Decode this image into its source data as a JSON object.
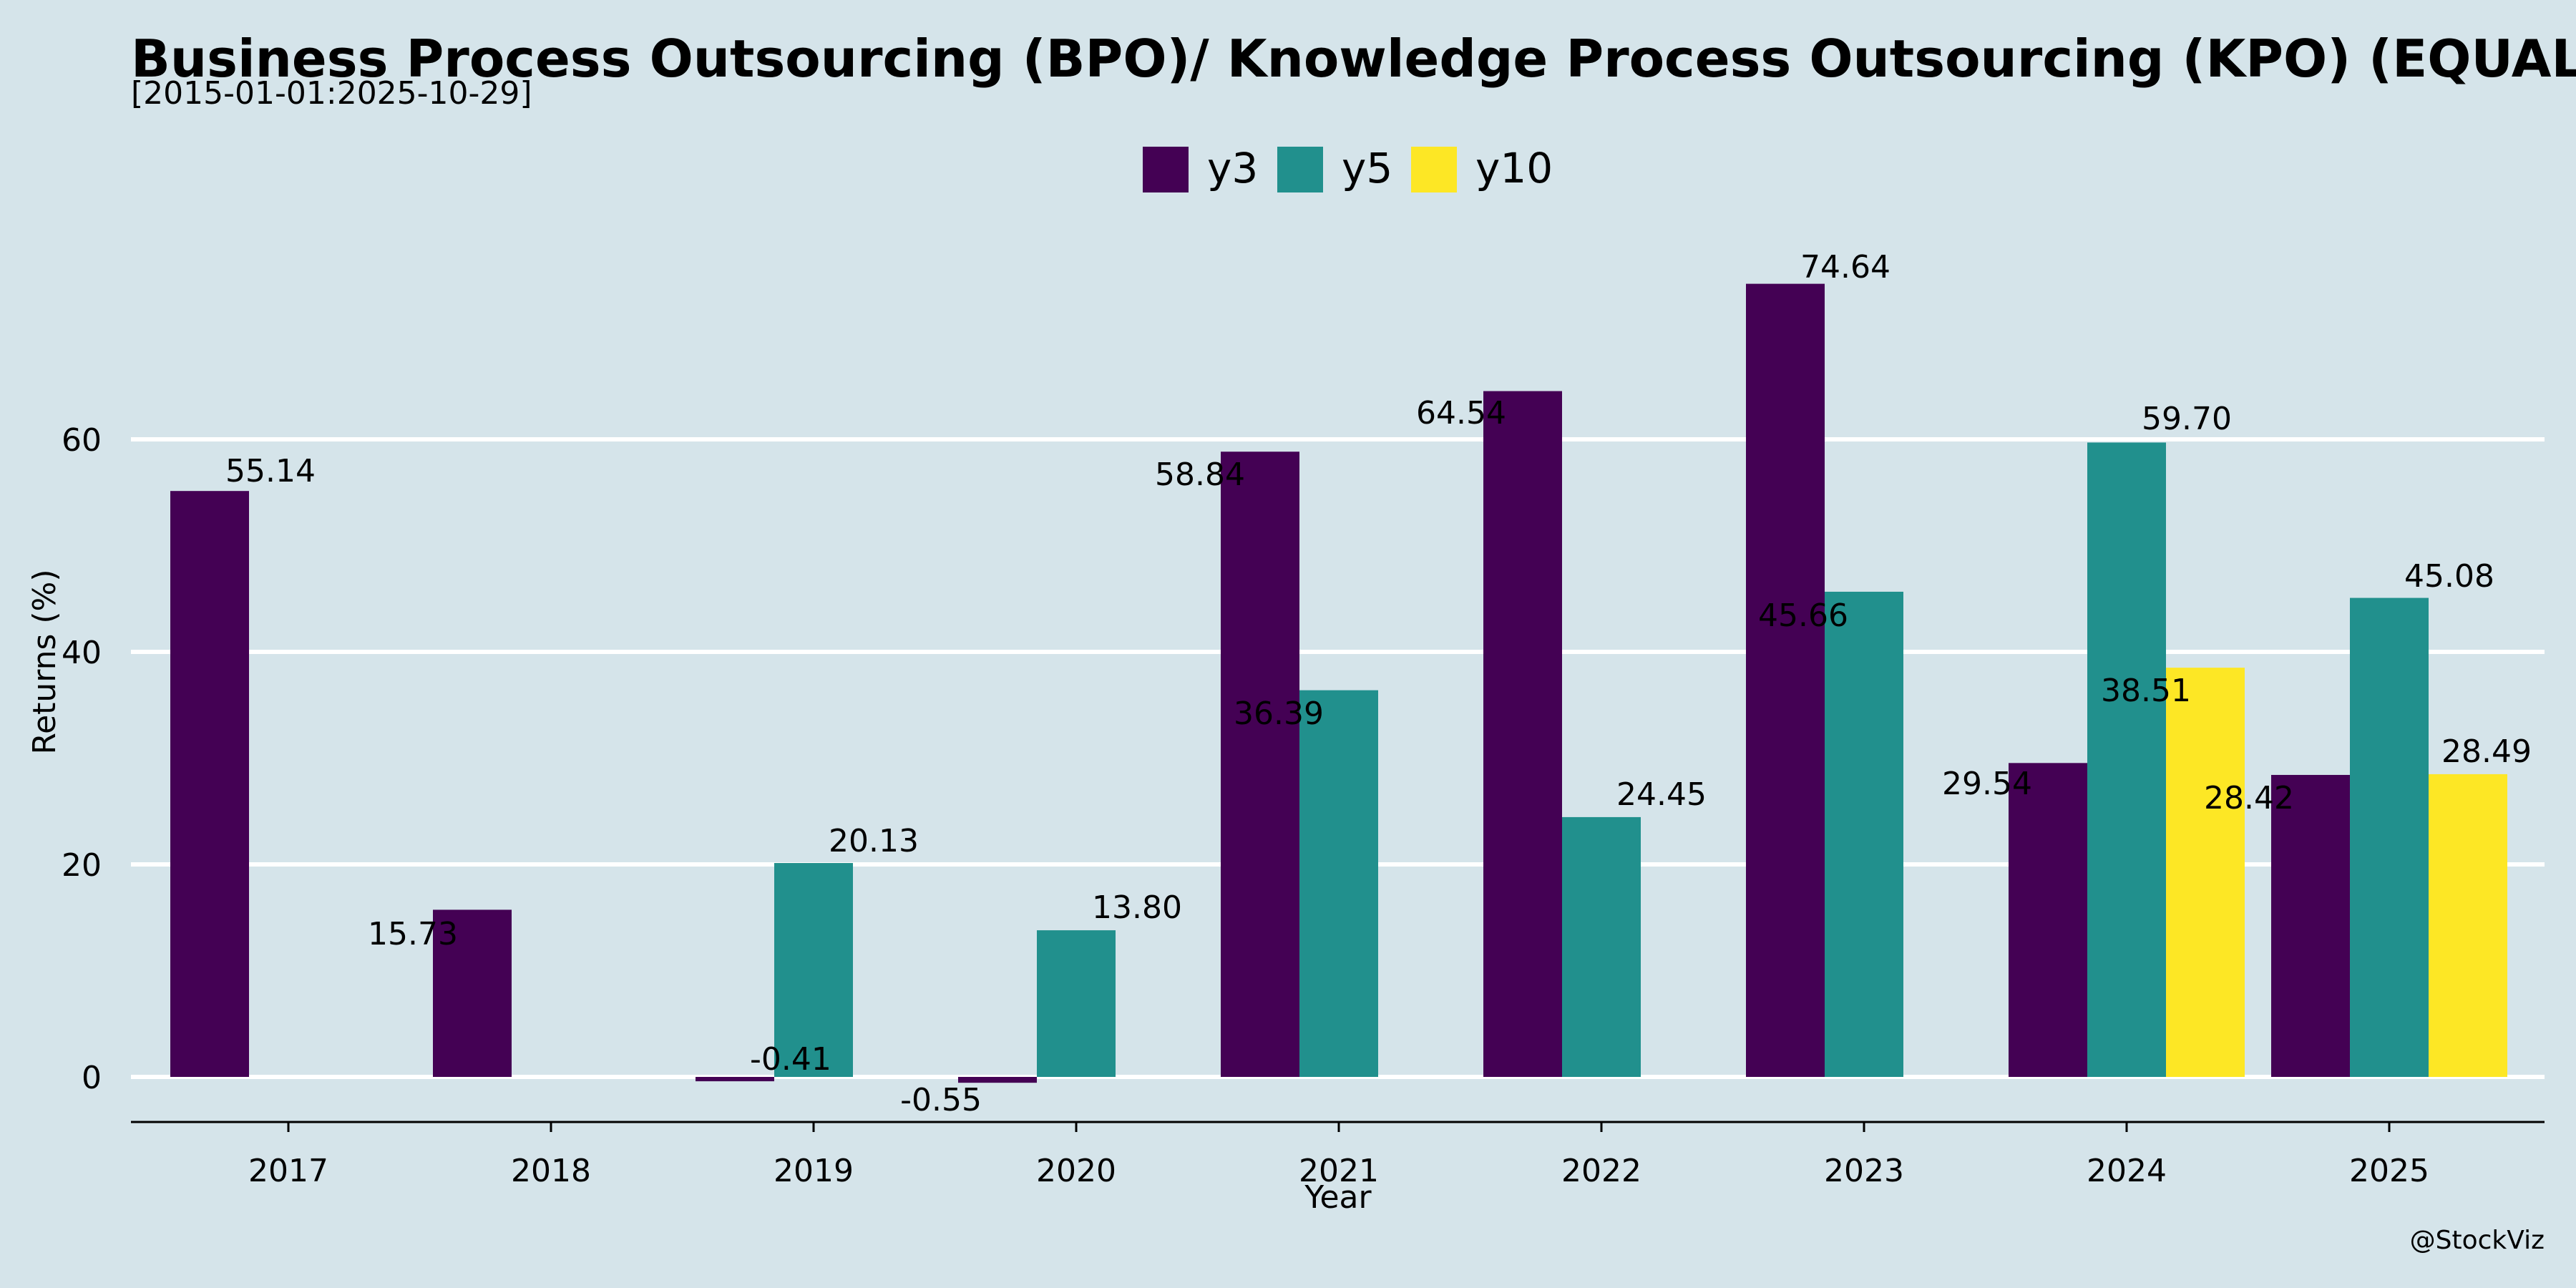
{
  "chart_data": {
    "type": "bar",
    "title": "Business Process Outsourcing (BPO)/ Knowledge Process Outsourcing (KPO) (EQUAL_WT",
    "subtitle": "[2015-01-01:2025-10-29]",
    "xlabel": "Year",
    "ylabel": "Returns (%)",
    "ylim": [
      -4,
      88
    ],
    "yticks": [
      0,
      20,
      40,
      60
    ],
    "grid": "horizontal",
    "legend_position": "top-center",
    "categories": [
      "2017",
      "2018",
      "2019",
      "2020",
      "2021",
      "2022",
      "2023",
      "2024",
      "2025"
    ],
    "series": [
      {
        "name": "y3",
        "color": "#440154",
        "values": [
          55.14,
          15.73,
          -0.41,
          -0.55,
          58.84,
          64.54,
          74.64,
          29.54,
          28.42
        ],
        "labels": [
          "55.14",
          "15.73",
          "-0.41",
          "-0.55",
          "58.84",
          "64.54",
          "74.64",
          "29.54",
          "28.42"
        ]
      },
      {
        "name": "y5",
        "color": "#21908d",
        "values": [
          null,
          null,
          20.13,
          13.8,
          36.39,
          24.45,
          45.66,
          59.7,
          45.08
        ],
        "labels": [
          null,
          null,
          "20.13",
          "13.80",
          "36.39",
          "24.45",
          "45.66",
          "59.70",
          "45.08"
        ]
      },
      {
        "name": "y10",
        "color": "#fde725",
        "values": [
          null,
          null,
          null,
          null,
          null,
          null,
          null,
          38.51,
          28.49
        ],
        "labels": [
          null,
          null,
          null,
          null,
          null,
          null,
          null,
          "38.51",
          "28.49"
        ]
      }
    ],
    "credit": "@StockViz"
  }
}
